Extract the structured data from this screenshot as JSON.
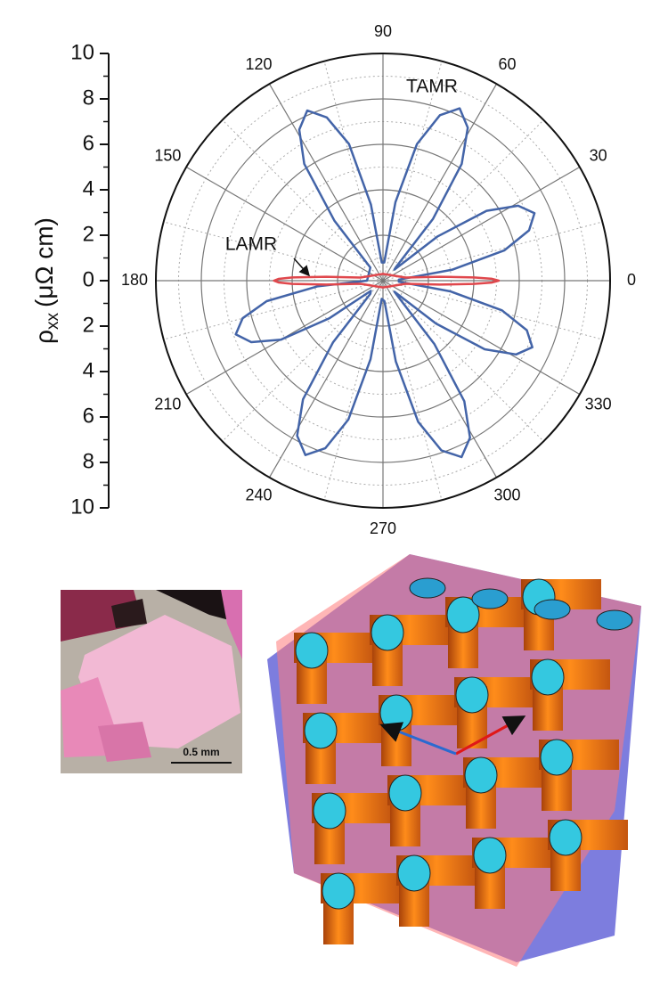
{
  "chart_data": {
    "type": "polar",
    "ylabel": "ρ",
    "ylabel_sub": "xx",
    "ylabel_unit": "(μΩ cm)",
    "rlim": [
      0,
      10
    ],
    "rticks": [
      0,
      2,
      4,
      6,
      8,
      10
    ],
    "thetaticks": [
      0,
      30,
      60,
      90,
      120,
      150,
      180,
      210,
      240,
      270,
      300,
      330
    ],
    "grid": true,
    "minor_grid": true,
    "series": [
      {
        "name": "TAMR",
        "color": "#4364a8",
        "theta": [
          4,
          9,
          14,
          19,
          24,
          29,
          34,
          39,
          44,
          46,
          51,
          56,
          61,
          66,
          71,
          76,
          81,
          86,
          94,
          99,
          104,
          109,
          114,
          119,
          124,
          129,
          134,
          180,
          185,
          190,
          195,
          200,
          205,
          210,
          215,
          220,
          226,
          231,
          236,
          241,
          246,
          251,
          256,
          261,
          266,
          274,
          279,
          284,
          289,
          294,
          299,
          304,
          309,
          314,
          316,
          321,
          326,
          331,
          336,
          341,
          346,
          351,
          356
        ],
        "r": [
          0.7,
          3.1,
          5.5,
          6.8,
          7.3,
          6.8,
          5.5,
          3.1,
          0.7,
          0.8,
          3.5,
          6.2,
          7.7,
          8.3,
          7.7,
          6.2,
          3.5,
          0.8,
          0.8,
          3.4,
          6.2,
          7.6,
          8.2,
          7.6,
          6.2,
          3.4,
          0.8,
          0.7,
          2.9,
          5.2,
          6.4,
          6.9,
          6.4,
          5.2,
          2.9,
          0.7,
          0.8,
          3.5,
          6.3,
          7.8,
          8.4,
          7.8,
          6.3,
          3.5,
          0.8,
          0.9,
          3.6,
          6.4,
          7.9,
          8.5,
          7.9,
          6.4,
          3.6,
          0.9,
          0.7,
          3.0,
          5.4,
          6.7,
          7.2,
          6.7,
          5.4,
          3.0,
          0.7
        ]
      },
      {
        "name": "LAMR",
        "color": "#e0474c",
        "theta": [
          0,
          1,
          2,
          4,
          8,
          90,
          172,
          176,
          178,
          179,
          180,
          181,
          182,
          184,
          188,
          270,
          352,
          356,
          358,
          359
        ],
        "r": [
          5.1,
          4.8,
          4.0,
          2.5,
          1.0,
          0.3,
          1.0,
          2.5,
          4.0,
          4.6,
          4.8,
          4.6,
          4.0,
          2.5,
          1.0,
          0.3,
          1.0,
          2.5,
          4.0,
          4.8
        ]
      }
    ]
  },
  "photo": {
    "scale_bar": "0.5 mm"
  }
}
